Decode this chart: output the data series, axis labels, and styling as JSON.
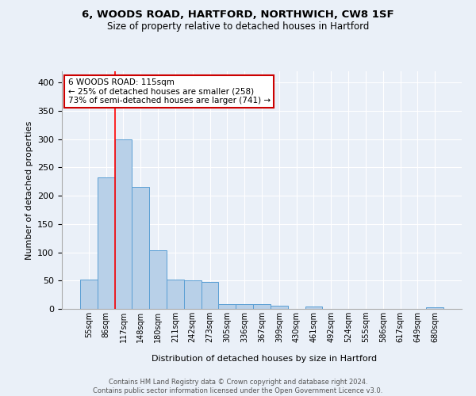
{
  "title1": "6, WOODS ROAD, HARTFORD, NORTHWICH, CW8 1SF",
  "title2": "Size of property relative to detached houses in Hartford",
  "xlabel": "Distribution of detached houses by size in Hartford",
  "ylabel": "Number of detached properties",
  "footnote": "Contains HM Land Registry data © Crown copyright and database right 2024.\nContains public sector information licensed under the Open Government Licence v3.0.",
  "bin_labels": [
    "55sqm",
    "86sqm",
    "117sqm",
    "148sqm",
    "180sqm",
    "211sqm",
    "242sqm",
    "273sqm",
    "305sqm",
    "336sqm",
    "367sqm",
    "399sqm",
    "430sqm",
    "461sqm",
    "492sqm",
    "524sqm",
    "555sqm",
    "586sqm",
    "617sqm",
    "649sqm",
    "680sqm"
  ],
  "bar_heights": [
    52,
    232,
    300,
    215,
    103,
    52,
    50,
    48,
    9,
    9,
    9,
    6,
    0,
    4,
    0,
    0,
    0,
    0,
    0,
    0,
    3
  ],
  "bar_color": "#b8d0e8",
  "bar_edge_color": "#5a9fd4",
  "red_line_index": 2,
  "annotation_text": "6 WOODS ROAD: 115sqm\n← 25% of detached houses are smaller (258)\n73% of semi-detached houses are larger (741) →",
  "annotation_box_color": "#ffffff",
  "annotation_box_edge": "#cc0000",
  "bg_color": "#eaf0f8",
  "grid_color": "#ffffff",
  "ylim": [
    0,
    420
  ],
  "yticks": [
    0,
    50,
    100,
    150,
    200,
    250,
    300,
    350,
    400
  ]
}
